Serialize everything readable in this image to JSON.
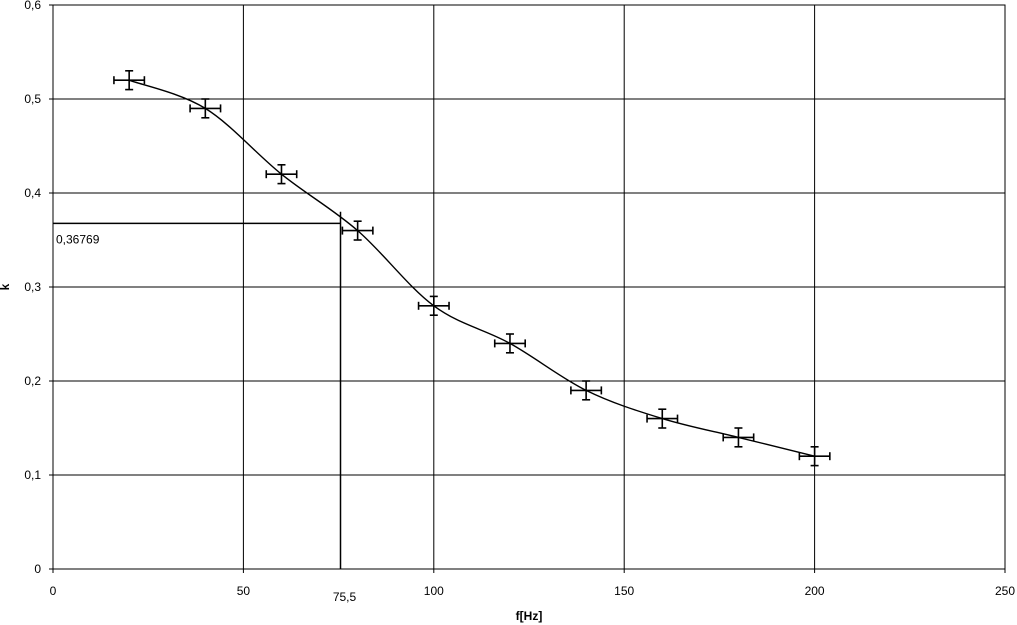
{
  "chart_data": {
    "type": "scatter",
    "xlabel": "f[Hz]",
    "ylabel": "k",
    "xlim": [
      0,
      250
    ],
    "ylim": [
      0,
      0.6
    ],
    "x_ticks": [
      0,
      50,
      100,
      150,
      200,
      250
    ],
    "y_ticks": [
      0,
      0.1,
      0.2,
      0.3,
      0.4,
      0.5,
      0.6
    ],
    "x_tick_labels": [
      "0",
      "50",
      "100",
      "150",
      "200",
      "250"
    ],
    "y_tick_labels": [
      "0",
      "0,1",
      "0,2",
      "0,3",
      "0,4",
      "0,5",
      "0,6"
    ],
    "grid": true,
    "series": [
      {
        "x": [
          20,
          40,
          60,
          80,
          100,
          120,
          140,
          160,
          180,
          200
        ],
        "y": [
          0.52,
          0.49,
          0.42,
          0.36,
          0.28,
          0.24,
          0.19,
          0.16,
          0.14,
          0.12
        ],
        "x_error": 4,
        "y_error": 0.01,
        "trendline": true
      }
    ],
    "annotations": [
      {
        "type": "hline",
        "y": 0.36769,
        "x_from": 0,
        "x_to": 75.5,
        "label": "0,36769"
      },
      {
        "type": "vline",
        "x": 75.5,
        "y_from": 0,
        "y_to": 0.38,
        "label": "75,5"
      }
    ]
  }
}
